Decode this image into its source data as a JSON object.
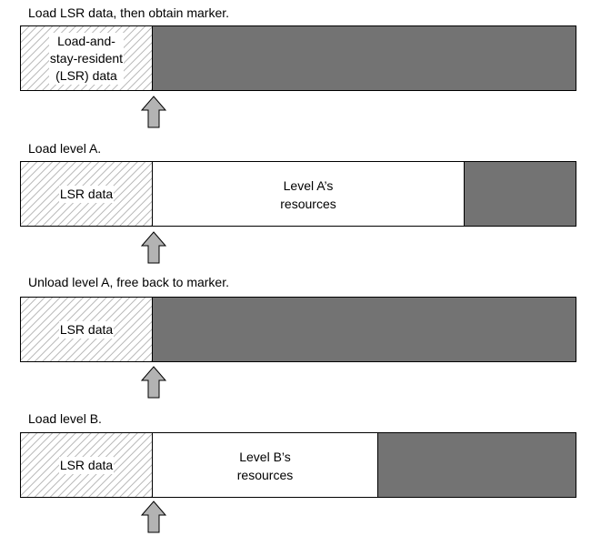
{
  "steps": [
    {
      "caption": "Load LSR data, then obtain marker.",
      "lsr_label": "Load-and-\nstay-resident\n(LSR) data",
      "resources_label": ""
    },
    {
      "caption": "Load level A.",
      "lsr_label": "LSR data",
      "resources_label": "Level A’s\nresources"
    },
    {
      "caption": "Unload level A, free back to marker.",
      "lsr_label": "LSR data",
      "resources_label": ""
    },
    {
      "caption": "Load level B.",
      "lsr_label": "LSR data",
      "resources_label": "Level B’s\nresources"
    }
  ]
}
